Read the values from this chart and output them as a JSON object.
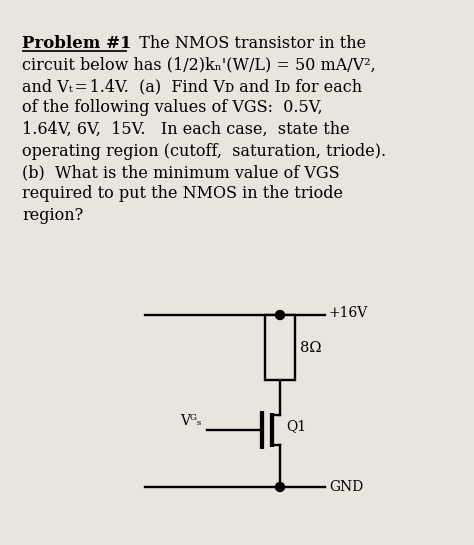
{
  "background_color": "#e8e4de",
  "title": "Problem #1",
  "line1_rest": "  The NMOS transistor in the",
  "lines": [
    "circuit below has (1/2)kₙ'(W/L) = 50 mA/V²,",
    "and Vₜ = 1.4V.  (a)  Find Vᴅ and Iᴅ for each",
    "of the following values of VGS:  0.5V,",
    "1.64V, 6V,  15V.   In each case,  state the",
    "operating region (cutoff,  saturation, triode).",
    "(b)  What is the minimum value of VGS",
    "required to put the NMOS in the triode",
    "region?"
  ],
  "circuit": {
    "supply_label": "+16V",
    "gnd_label": "GND",
    "resistor_label": "8Ω",
    "transistor_label": "Q1",
    "vgs_label": "Vᴳₛ"
  }
}
